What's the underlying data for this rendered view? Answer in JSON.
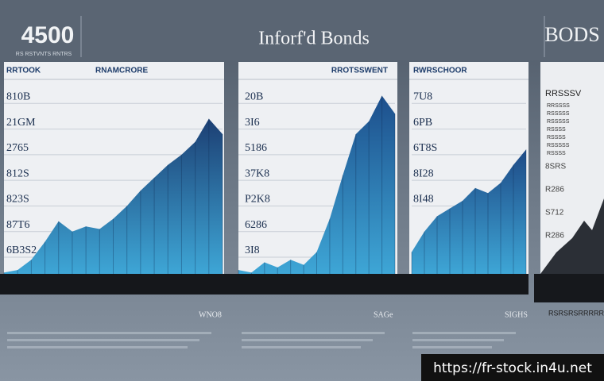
{
  "header": {
    "left_number": "4500",
    "left_subtitle": "RS RSTVNTS RNTRS",
    "title": "Inforf'd Bonds",
    "right_title": "BODS"
  },
  "side_panel": {
    "heading": "RRSSSV",
    "items": [
      "RRSSSS",
      "RSSSSS",
      "RSSSSS",
      "RSSSS",
      "RSSSS",
      "RSSSSS",
      "RSSSS"
    ],
    "ticks": [
      "8SRS",
      "R286",
      "S712",
      "R286"
    ],
    "caption": "RSRSRSRRRRRR"
  },
  "watermark": "https://fr-stock.in4u.net",
  "chart_data": [
    {
      "type": "area",
      "side_label": "RRTOOK",
      "title": "RNAMCRORE",
      "color": "#1c3f73",
      "grid": true,
      "caption": "WNO8",
      "categories": [
        null,
        null,
        null,
        null,
        null,
        null,
        null,
        null,
        null,
        null,
        null,
        null,
        null,
        null,
        null,
        null,
        null
      ],
      "values": [
        0.4,
        0.5,
        0.9,
        1.6,
        2.4,
        2.0,
        2.2,
        2.1,
        2.5,
        3.0,
        3.6,
        4.1,
        4.6,
        5.0,
        5.5,
        6.4,
        5.8
      ],
      "ylim": [
        0.35,
        8
      ],
      "yticks": [
        {
          "value": 1,
          "label": "6B3S2"
        },
        {
          "value": 2,
          "label": "87T6"
        },
        {
          "value": 3,
          "label": "823S"
        },
        {
          "value": 4,
          "label": "812S"
        },
        {
          "value": 5,
          "label": "2765"
        },
        {
          "value": 6,
          "label": "21GM"
        },
        {
          "value": 7,
          "label": "810B"
        }
      ]
    },
    {
      "type": "area",
      "title": "RROTSSWENT",
      "color": "#1d4f8c",
      "grid": true,
      "caption": "SAGe",
      "categories": [
        null,
        null,
        null,
        null,
        null,
        null,
        null,
        null,
        null,
        null,
        null,
        null,
        null
      ],
      "values": [
        0.5,
        0.4,
        0.8,
        0.6,
        0.9,
        0.7,
        1.2,
        2.5,
        4.2,
        5.8,
        6.3,
        7.3,
        6.6
      ],
      "ylim": [
        0.35,
        8
      ],
      "yticks": [
        {
          "value": 1,
          "label": "3I8"
        },
        {
          "value": 2,
          "label": "6286"
        },
        {
          "value": 3,
          "label": "P2K8"
        },
        {
          "value": 4,
          "label": "37K8"
        },
        {
          "value": 5,
          "label": "5186"
        },
        {
          "value": 6,
          "label": "3I6"
        },
        {
          "value": 7,
          "label": "20B"
        }
      ]
    },
    {
      "type": "area",
      "title": "RWRSCHOOR",
      "color": "#1e4a86",
      "grid": true,
      "caption": "SIGHS",
      "categories": [
        null,
        null,
        null,
        null,
        null,
        null,
        null,
        null,
        null,
        null
      ],
      "values": [
        1.2,
        2.0,
        2.6,
        2.9,
        3.2,
        3.7,
        3.5,
        3.9,
        4.6,
        5.2
      ],
      "ylim": [
        0.35,
        8
      ],
      "yticks": [
        {
          "value": 3,
          "label": "8I48"
        },
        {
          "value": 4,
          "label": "8I28"
        },
        {
          "value": 5,
          "label": "6T8S"
        },
        {
          "value": 6,
          "label": "6PB"
        },
        {
          "value": 7,
          "label": "7U8"
        }
      ]
    }
  ]
}
